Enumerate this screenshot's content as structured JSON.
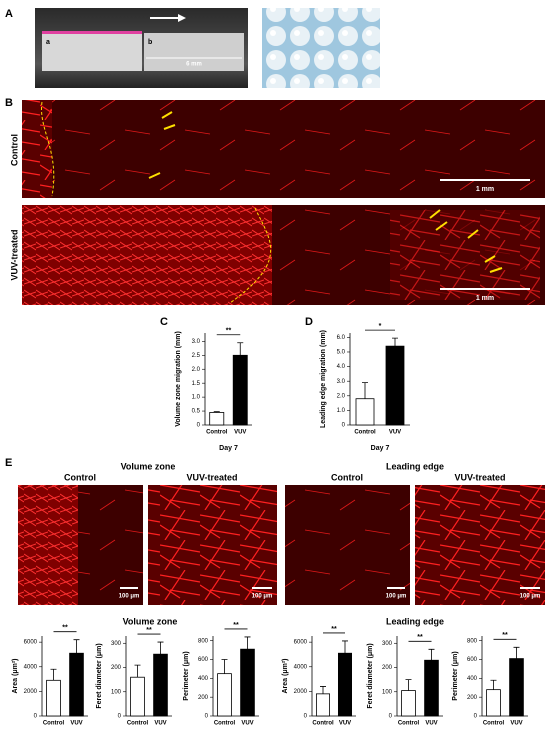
{
  "figure": {
    "panel_labels": [
      "A",
      "B",
      "C",
      "D",
      "E"
    ],
    "A": {
      "block_a": "a",
      "block_b": "b",
      "distance": "6 mm"
    },
    "B": {
      "rows": [
        "Control",
        "VUV-treated"
      ],
      "scale_bars": [
        "1 mm",
        "1 mm"
      ]
    },
    "E": {
      "group_titles": [
        "Volume zone",
        "Leading edge"
      ],
      "column_titles": [
        "Control",
        "VUV-treated",
        "Control",
        "VUV-treated"
      ],
      "scale_bars": [
        "100 μm",
        "100 μm",
        "100 μm",
        "100 μm"
      ],
      "quant_titles": [
        "Volume zone",
        "Leading edge"
      ]
    }
  },
  "chart_data": [
    {
      "type": "bar",
      "y_label": "Volume zone migration (mm)",
      "x_label": "Day 7",
      "categories": [
        "Control",
        "VUV"
      ],
      "values": [
        0.45,
        2.5
      ],
      "errors": [
        0.03,
        0.45
      ],
      "colors": [
        "#ffffff",
        "#000000"
      ],
      "significance": "**",
      "ylim": [
        0,
        3.3
      ],
      "yticks": [
        0,
        0.5,
        {
          "value": 1,
          "label": "1.0"
        },
        1.5,
        {
          "value": 2,
          "label": "2.0"
        },
        2.5,
        {
          "value": 3,
          "label": "3.0"
        }
      ]
    },
    {
      "type": "bar",
      "y_label": "Leading edge migration (mm)",
      "x_label": "Day 7",
      "categories": [
        "Control",
        "VUV"
      ],
      "values": [
        1.8,
        5.4
      ],
      "errors": [
        1.1,
        0.55
      ],
      "colors": [
        "#ffffff",
        "#000000"
      ],
      "significance": "*",
      "ylim": [
        0,
        6.3
      ],
      "yticks": [
        0,
        {
          "value": 1,
          "label": "1.0"
        },
        {
          "value": 2,
          "label": "2.0"
        },
        {
          "value": 3,
          "label": "3.0"
        },
        {
          "value": 4,
          "label": "4.0"
        },
        {
          "value": 5,
          "label": "5.0"
        },
        {
          "value": 6,
          "label": "6.0"
        }
      ]
    },
    {
      "type": "bar",
      "y_label": "Area (μm²)",
      "categories": [
        "Control",
        "VUV"
      ],
      "values": [
        2900,
        5100
      ],
      "errors": [
        900,
        1100
      ],
      "colors": [
        "#ffffff",
        "#000000"
      ],
      "significance": "**",
      "ylim": [
        0,
        6500
      ],
      "yticks": [
        0,
        2000,
        4000,
        6000
      ]
    },
    {
      "type": "bar",
      "y_label": "Feret diameter (μm)",
      "categories": [
        "Control",
        "VUV"
      ],
      "values": [
        160,
        255
      ],
      "errors": [
        50,
        50
      ],
      "colors": [
        "#ffffff",
        "#000000"
      ],
      "significance": "**",
      "ylim": [
        0,
        330
      ],
      "yticks": [
        0,
        100,
        200,
        300
      ]
    },
    {
      "type": "bar",
      "y_label": "Perimeter (μm)",
      "categories": [
        "Control",
        "VUV"
      ],
      "values": [
        450,
        710
      ],
      "errors": [
        150,
        130
      ],
      "colors": [
        "#ffffff",
        "#000000"
      ],
      "significance": "**",
      "ylim": [
        0,
        850
      ],
      "yticks": [
        0,
        200,
        400,
        600,
        800
      ]
    },
    {
      "type": "bar",
      "y_label": "Area (μm²)",
      "categories": [
        "Control",
        "VUV"
      ],
      "values": [
        1800,
        5100
      ],
      "errors": [
        600,
        1000
      ],
      "colors": [
        "#ffffff",
        "#000000"
      ],
      "significance": "**",
      "ylim": [
        0,
        6500
      ],
      "yticks": [
        0,
        2000,
        4000,
        6000
      ]
    },
    {
      "type": "bar",
      "y_label": "Feret diameter (μm)",
      "categories": [
        "Control",
        "VUV"
      ],
      "values": [
        105,
        230
      ],
      "errors": [
        45,
        45
      ],
      "colors": [
        "#ffffff",
        "#000000"
      ],
      "significance": "**",
      "ylim": [
        0,
        330
      ],
      "yticks": [
        0,
        100,
        200,
        300
      ]
    },
    {
      "type": "bar",
      "y_label": "Perimeter (μm)",
      "categories": [
        "Control",
        "VUV"
      ],
      "values": [
        280,
        610
      ],
      "errors": [
        100,
        120
      ],
      "colors": [
        "#ffffff",
        "#000000"
      ],
      "significance": "**",
      "ylim": [
        0,
        850
      ],
      "yticks": [
        0,
        200,
        400,
        600,
        800
      ]
    }
  ]
}
